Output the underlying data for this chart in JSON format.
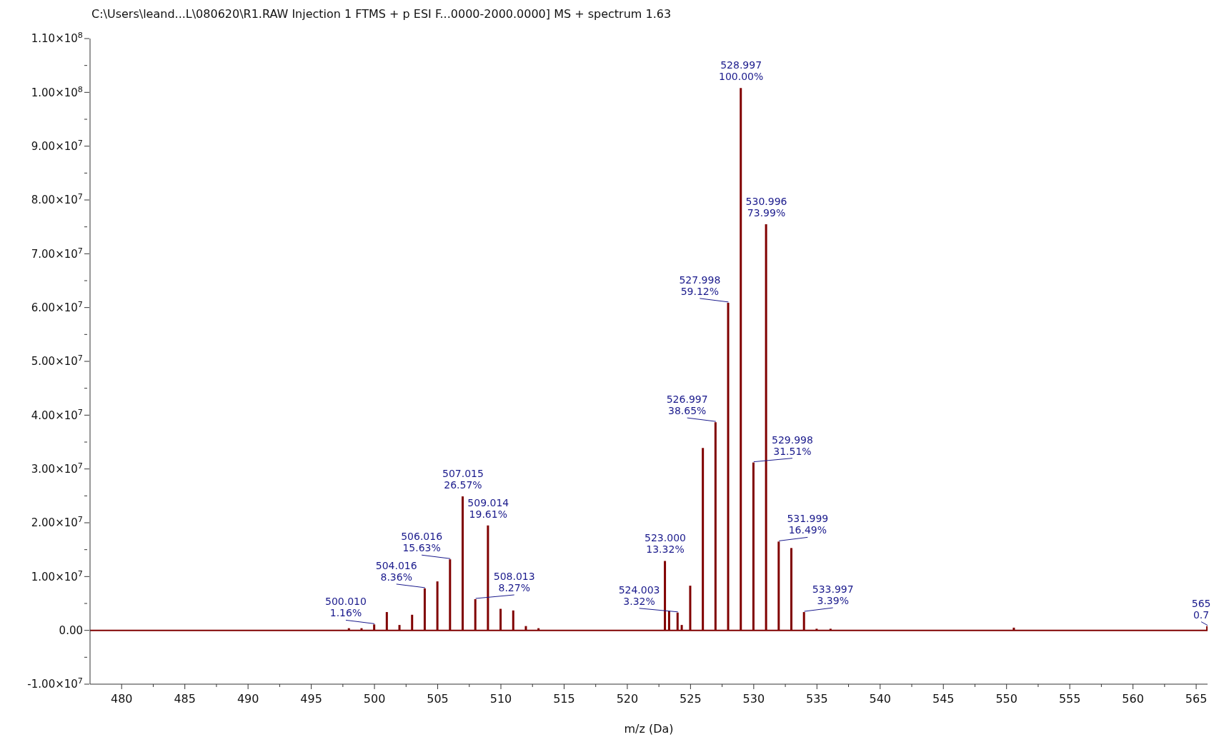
{
  "chart_data": {
    "type": "bar",
    "title": "C:\\Users\\leand...L\\080620\\R1.RAW Injection 1 FTMS + p ESI F...0000-2000.0000] MS + spectrum 1.63",
    "xlabel": "m/z (Da)",
    "x": [
      498.0,
      499.0,
      500.0,
      501.0,
      502.0,
      503.0,
      504.0,
      505.0,
      506.0,
      507.0,
      508.0,
      509.0,
      510.0,
      511.0,
      512.0,
      513.0,
      523.0,
      523.33,
      524.0,
      524.33,
      525.0,
      526.0,
      527.0,
      528.0,
      529.0,
      530.0,
      531.0,
      532.0,
      533.0,
      534.0,
      535.0,
      536.1,
      550.6,
      565.9
    ],
    "values": [
      400000,
      400000,
      1100000,
      3400000,
      1000000,
      2900000,
      7800000,
      9100000,
      13200000,
      24900000,
      5800000,
      19500000,
      4000000,
      3700000,
      800000,
      400000,
      12900000,
      3600000,
      3300000,
      1000000,
      8300000,
      33900000,
      38700000,
      60900000,
      100800000,
      31200000,
      75500000,
      16500000,
      15300000,
      3400000,
      300000,
      300000,
      500000,
      800000
    ],
    "annotations": [
      {
        "text": "500.010\n1.16%",
        "x": 500.0,
        "y": 1100000
      },
      {
        "text": "504.016\n8.36%",
        "x": 504.0,
        "y": 7800000
      },
      {
        "text": "506.016\n15.63%",
        "x": 506.0,
        "y": 13200000
      },
      {
        "text": "507.015\n26.57%",
        "x": 507.0,
        "y": 24900000
      },
      {
        "text": "508.013\n8.27%",
        "x": 508.0,
        "y": 5800000
      },
      {
        "text": "509.014\n19.61%",
        "x": 509.0,
        "y": 19500000
      },
      {
        "text": "523.000\n13.32%",
        "x": 523.0,
        "y": 12900000
      },
      {
        "text": "524.003\n3.32%",
        "x": 524.0,
        "y": 3300000
      },
      {
        "text": "526.997\n38.65%",
        "x": 527.0,
        "y": 38700000
      },
      {
        "text": "527.998\n59.12%",
        "x": 528.0,
        "y": 60900000
      },
      {
        "text": "528.997\n100.00%",
        "x": 529.0,
        "y": 100800000
      },
      {
        "text": "529.998\n31.51%",
        "x": 530.0,
        "y": 31200000
      },
      {
        "text": "530.996\n73.99%",
        "x": 531.0,
        "y": 75500000
      },
      {
        "text": "531.999\n16.49%",
        "x": 532.0,
        "y": 16500000
      },
      {
        "text": "533.997\n3.39%",
        "x": 534.0,
        "y": 3400000
      },
      {
        "text": "565\n0.7",
        "x": 565.9,
        "y": 800000
      }
    ],
    "color": "#800000",
    "xlim": [
      477.5,
      565.9
    ],
    "xticks": [
      480,
      {
        "value": 482.5,
        "label": null
      },
      485,
      {
        "value": 487.5,
        "label": null
      },
      490,
      {
        "value": 492.5,
        "label": null
      },
      495,
      {
        "value": 497.5,
        "label": null
      },
      500,
      {
        "value": 502.5,
        "label": null
      },
      505,
      {
        "value": 507.5,
        "label": null
      },
      510,
      {
        "value": 512.5,
        "label": null
      },
      515,
      {
        "value": 517.5,
        "label": null
      },
      520,
      {
        "value": 522.5,
        "label": null
      },
      525,
      {
        "value": 527.5,
        "label": null
      },
      530,
      {
        "value": 532.5,
        "label": null
      },
      535,
      {
        "value": 537.5,
        "label": null
      },
      540,
      {
        "value": 542.5,
        "label": null
      },
      545,
      {
        "value": 547.5,
        "label": null
      },
      550,
      {
        "value": 552.5,
        "label": null
      },
      555,
      {
        "value": 557.5,
        "label": null
      },
      560,
      {
        "value": 562.5,
        "label": null
      },
      565
    ],
    "ylim": [
      -10000000,
      110000000
    ],
    "yticks": [
      {
        "value": -10000000,
        "label": "-1.00×10$^{7}$"
      },
      {
        "value": -5000000,
        "label": null
      },
      {
        "value": 0,
        "label": "0.00"
      },
      {
        "value": 5000000,
        "label": null
      },
      {
        "value": 10000000,
        "label": "1.00×10$^{7}$"
      },
      {
        "value": 15000000,
        "label": null
      },
      {
        "value": 20000000,
        "label": "2.00×10$^{7}$"
      },
      {
        "value": 25000000,
        "label": null
      },
      {
        "value": 30000000,
        "label": "3.00×10$^{7}$"
      },
      {
        "value": 35000000,
        "label": null
      },
      {
        "value": 40000000,
        "label": "4.00×10$^{7}$"
      },
      {
        "value": 45000000,
        "label": null
      },
      {
        "value": 50000000,
        "label": "5.00×10$^{7}$"
      },
      {
        "value": 55000000,
        "label": null
      },
      {
        "value": 60000000,
        "label": "6.00×10$^{7}$"
      },
      {
        "value": 65000000,
        "label": null
      },
      {
        "value": 70000000,
        "label": "7.00×10$^{7}$"
      },
      {
        "value": 75000000,
        "label": null
      },
      {
        "value": 80000000,
        "label": "8.00×10$^{7}$"
      },
      {
        "value": 85000000,
        "label": null
      },
      {
        "value": 90000000,
        "label": "9.00×10$^{7}$"
      },
      {
        "value": 95000000,
        "label": null
      },
      {
        "value": 100000000,
        "label": "1.00×10$^{8}$"
      },
      {
        "value": 105000000,
        "label": null
      },
      {
        "value": 110000000,
        "label": "1.10×10$^{8}$"
      }
    ],
    "ref_lines": [
      {
        "axis": "y",
        "value": 0,
        "color": "#800000"
      }
    ],
    "grid": false,
    "legend": false
  }
}
